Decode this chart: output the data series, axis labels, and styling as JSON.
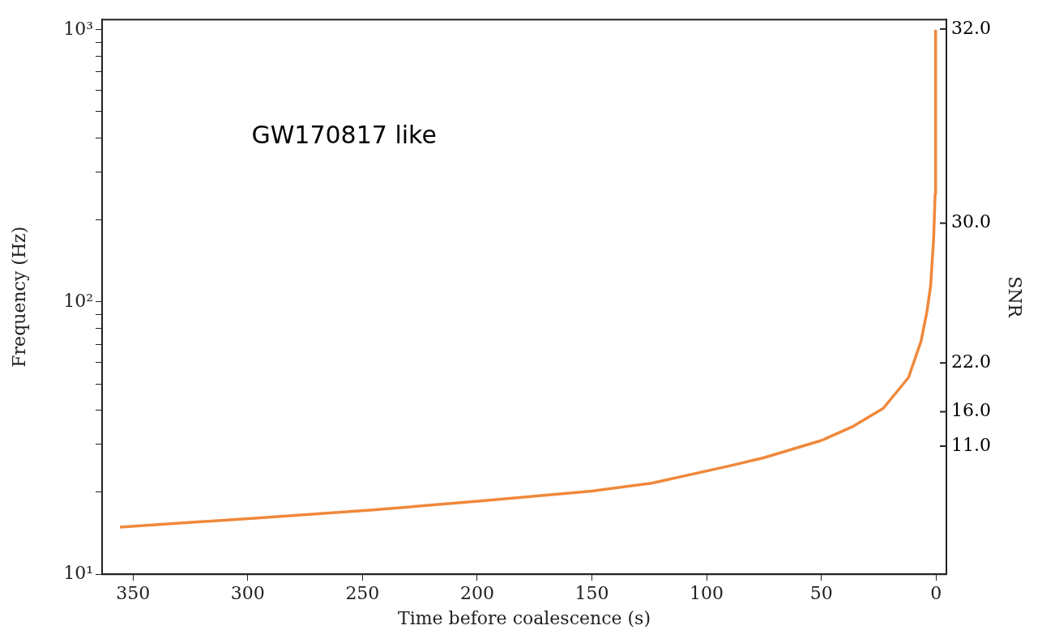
{
  "chart_data": {
    "type": "line",
    "xlabel": "Time before coalescence (s)",
    "ylabel": "Frequency (Hz)",
    "y2label": "SNR",
    "annotations": [
      "GW170817 like",
      "11.0",
      "16.0",
      "22.0",
      "30.0",
      "32.0"
    ],
    "x": [
      355.7,
      295.7,
      246.6,
      197.7,
      150,
      124,
      90,
      75,
      50,
      36,
      23,
      12,
      6.5,
      4,
      2.4,
      1.1,
      0.7,
      0.4,
      0.2
    ],
    "series": [
      {
        "color": "#f0883a",
        "values": [
          14.9,
          16.1,
          17.2,
          18.6,
          20.2,
          21.6,
          25.0,
          26.8,
          31,
          35.0,
          40.7,
          52.8,
          72,
          92,
          114,
          168,
          210,
          250,
          1000
        ]
      }
    ],
    "xlim": [
      363.5,
      -4.5
    ],
    "xticks": [
      350,
      300,
      250,
      200,
      150,
      100,
      50,
      0
    ],
    "ylim": [
      10,
      1090
    ],
    "yticks": [
      {
        "value": 10,
        "label": "10¹"
      },
      {
        "value": 20,
        "label": null
      },
      {
        "value": 30,
        "label": null
      },
      {
        "value": 40,
        "label": null
      },
      {
        "value": 50,
        "label": null
      },
      {
        "value": 60,
        "label": null
      },
      {
        "value": 70,
        "label": null
      },
      {
        "value": 80,
        "label": null
      },
      {
        "value": 90,
        "label": null
      },
      {
        "value": 100,
        "label": "10²"
      },
      {
        "value": 200,
        "label": null
      },
      {
        "value": 300,
        "label": null
      },
      {
        "value": 400,
        "label": null
      },
      {
        "value": 500,
        "label": null
      },
      {
        "value": 600,
        "label": null
      },
      {
        "value": 700,
        "label": null
      },
      {
        "value": 800,
        "label": null
      },
      {
        "value": 900,
        "label": null
      },
      {
        "value": 1000,
        "label": "10³"
      }
    ],
    "log": "y",
    "grid": false,
    "legend": false,
    "marker": "none",
    "line_style": "solid"
  }
}
